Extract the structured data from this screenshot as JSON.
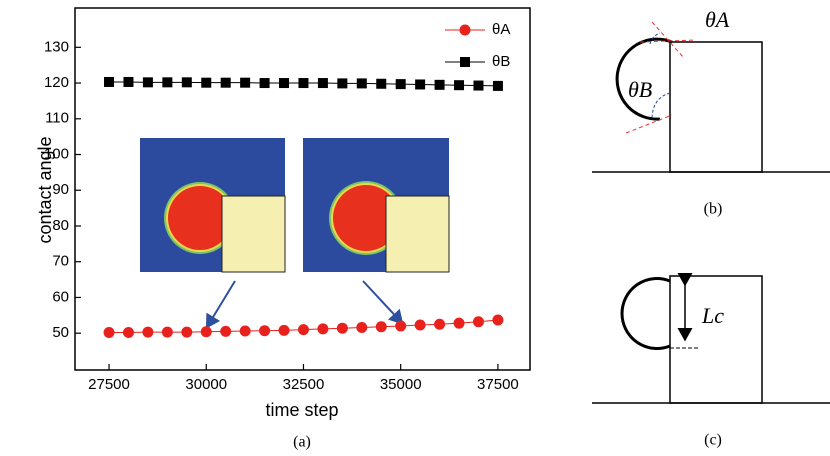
{
  "chart_data": {
    "type": "line",
    "x_label": "time step",
    "y_label": "contact angle",
    "caption": "(a)",
    "x": [
      27500,
      28000,
      28500,
      29000,
      29500,
      30000,
      30500,
      31000,
      31500,
      32000,
      32500,
      33000,
      33500,
      34000,
      34500,
      35000,
      35500,
      36000,
      36500,
      37000,
      37500
    ],
    "series": [
      {
        "name": "θA",
        "color": "#e8211c",
        "marker": "circle",
        "values": [
          50.2,
          50.2,
          50.3,
          50.3,
          50.3,
          50.4,
          50.5,
          50.6,
          50.7,
          50.8,
          51.0,
          51.2,
          51.4,
          51.6,
          51.8,
          52.0,
          52.3,
          52.5,
          52.8,
          53.2,
          53.7
        ]
      },
      {
        "name": "θB",
        "color": "#000000",
        "marker": "square",
        "values": [
          120.3,
          120.3,
          120.2,
          120.2,
          120.2,
          120.1,
          120.1,
          120.1,
          120.0,
          120.0,
          120.0,
          120.0,
          119.9,
          119.9,
          119.8,
          119.7,
          119.6,
          119.5,
          119.4,
          119.3,
          119.2
        ]
      }
    ],
    "xlim": [
      26625,
      38325
    ],
    "ylim": [
      39.7,
      141
    ],
    "xticks": [
      27500,
      30000,
      32500,
      35000,
      37500
    ],
    "yticks": [
      50,
      60,
      70,
      80,
      90,
      100,
      110,
      120,
      130
    ],
    "legend": "upper-right"
  },
  "diagram_b": {
    "caption": "(b)",
    "theta_a": "θA",
    "theta_b": "θB"
  },
  "diagram_c": {
    "caption": "(c)",
    "length": "Lc"
  }
}
